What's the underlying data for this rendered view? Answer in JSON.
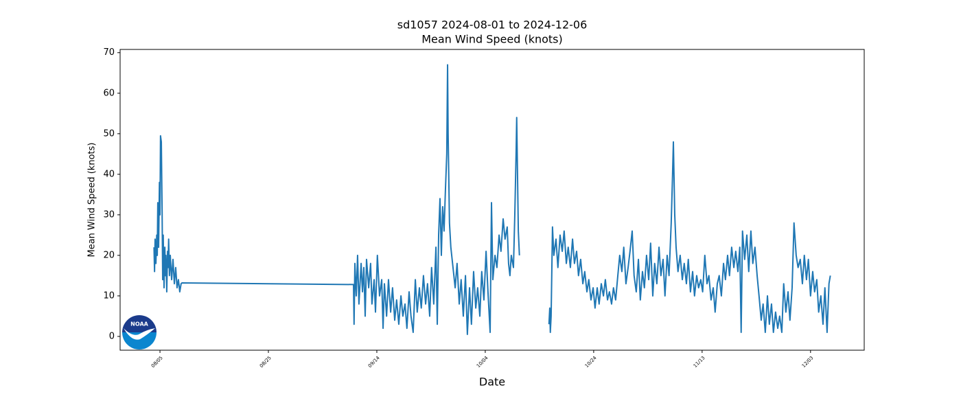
{
  "chart_data": {
    "type": "line",
    "title": "sd1057 2024-08-01 to 2024-12-06",
    "subtitle": "Mean Wind Speed (knots)",
    "x_label": "Date",
    "y_label": "Mean Wind Speed (knots)",
    "logo_text": "NOAA",
    "xlim": [
      -3.35,
      133.9
    ],
    "ylim": [
      -3.4,
      70.8
    ],
    "xticks": [
      {
        "value": 4,
        "label": "08/05"
      },
      {
        "value": 24,
        "label": "08/25"
      },
      {
        "value": 44,
        "label": "09/14"
      },
      {
        "value": 64,
        "label": "10/04"
      },
      {
        "value": 84,
        "label": "10/24"
      },
      {
        "value": 104,
        "label": "11/13"
      },
      {
        "value": 124,
        "label": "12/03"
      }
    ],
    "yticks": [
      0,
      10,
      20,
      30,
      40,
      50,
      60,
      70
    ],
    "series": [
      {
        "name": "Mean Wind Speed",
        "color": "#1f77b4",
        "x": [
          2.9,
          3.0,
          3.1,
          3.25,
          3.4,
          3.5,
          3.6,
          3.75,
          3.9,
          4.0,
          4.1,
          4.25,
          4.4,
          4.5,
          4.6,
          4.75,
          4.9,
          5.0,
          5.1,
          5.25,
          5.4,
          5.5,
          5.6,
          5.75,
          5.9,
          6.15,
          6.4,
          6.65,
          6.9,
          7.15,
          7.4,
          7.65,
          7.9,
          8.05,
          39.7,
          39.8,
          39.95,
          40.2,
          40.45,
          40.7,
          41.1,
          41.35,
          41.6,
          41.85,
          42.1,
          42.5,
          42.85,
          43.1,
          43.5,
          43.75,
          44.1,
          44.5,
          44.9,
          45.15,
          45.4,
          45.8,
          46.15,
          46.55,
          46.9,
          47.3,
          47.65,
          48.05,
          48.45,
          48.8,
          49.2,
          49.55,
          49.95,
          50.3,
          50.7,
          51.1,
          51.45,
          51.85,
          52.2,
          52.6,
          53.0,
          53.35,
          53.75,
          54.1,
          54.5,
          54.9,
          55.15,
          55.4,
          55.65,
          55.9,
          56.15,
          56.4,
          56.65,
          56.9,
          57.05,
          57.15,
          57.4,
          57.65,
          58.05,
          58.45,
          58.8,
          59.2,
          59.55,
          59.95,
          60.35,
          60.7,
          61.1,
          61.45,
          61.85,
          62.25,
          62.6,
          63.0,
          63.35,
          63.75,
          64.15,
          64.5,
          64.9,
          65.15,
          65.4,
          65.8,
          66.15,
          66.55,
          66.9,
          67.3,
          67.65,
          68.05,
          68.3,
          68.55,
          68.8,
          69.2,
          69.45,
          69.7,
          69.8,
          69.95,
          70.1,
          70.3,
          73.0,
          75.75,
          75.9,
          76.0,
          76.15,
          76.4,
          76.65,
          77.05,
          77.4,
          77.8,
          78.2,
          78.55,
          78.95,
          79.3,
          79.7,
          80.1,
          80.45,
          80.85,
          81.2,
          81.6,
          82.0,
          82.35,
          82.75,
          83.1,
          83.5,
          83.9,
          84.25,
          84.65,
          85.0,
          85.4,
          85.8,
          86.15,
          86.55,
          86.9,
          87.3,
          87.65,
          88.05,
          88.45,
          88.8,
          89.2,
          89.55,
          89.95,
          90.35,
          90.7,
          91.1,
          91.45,
          91.85,
          92.25,
          92.6,
          93.0,
          93.35,
          93.75,
          94.15,
          94.5,
          94.9,
          95.25,
          95.65,
          96.05,
          96.4,
          96.8,
          97.15,
          97.55,
          97.9,
          98.3,
          98.55,
          98.7,
          98.95,
          99.2,
          99.55,
          99.95,
          100.35,
          100.7,
          101.1,
          101.45,
          101.85,
          102.25,
          102.6,
          103.0,
          103.35,
          103.75,
          104.1,
          104.5,
          104.9,
          105.25,
          105.65,
          106.05,
          106.4,
          106.8,
          107.15,
          107.55,
          107.95,
          108.3,
          108.7,
          109.05,
          109.45,
          109.85,
          110.2,
          110.6,
          110.95,
          111.2,
          111.45,
          111.85,
          112.25,
          112.6,
          113.0,
          113.35,
          113.75,
          114.15,
          114.5,
          114.9,
          115.25,
          115.65,
          116.05,
          116.4,
          116.8,
          117.15,
          117.55,
          117.95,
          118.3,
          118.7,
          119.05,
          119.45,
          119.85,
          120.2,
          120.6,
          120.95,
          121.35,
          121.7,
          122.1,
          122.5,
          122.85,
          123.25,
          123.6,
          124.0,
          124.4,
          124.75,
          125.15,
          125.5,
          125.9,
          126.3,
          126.65,
          127.05,
          127.4,
          127.65
        ],
        "values": [
          22,
          16,
          24,
          18,
          25,
          20,
          33,
          22,
          38,
          30,
          49.5,
          48,
          30,
          14,
          25,
          12,
          22,
          15,
          20,
          11,
          21,
          17,
          24,
          15,
          20,
          14,
          19,
          13,
          17,
          12,
          14,
          11,
          13,
          13.2,
          12.8,
          3,
          18,
          10,
          20,
          8,
          18,
          11,
          17,
          5,
          19,
          12,
          18,
          8,
          14,
          6,
          20,
          10,
          14,
          2,
          13,
          5,
          14,
          6,
          12,
          4,
          9,
          3,
          10,
          5,
          8,
          2,
          11,
          5,
          1,
          14,
          6,
          12,
          7,
          15,
          8,
          13,
          5,
          17,
          8,
          22,
          3,
          25,
          34,
          20,
          32,
          26,
          36,
          45,
          67,
          50,
          28,
          22,
          17,
          12,
          18,
          8,
          14,
          5,
          15,
          0.5,
          12,
          3,
          16,
          7,
          12,
          5,
          16,
          9,
          21,
          11,
          1,
          33,
          14,
          20,
          17,
          25,
          21,
          29,
          24,
          27,
          18,
          15,
          20,
          17,
          30,
          46,
          54,
          40,
          26,
          20,
          null,
          3,
          7,
          1,
          5,
          27,
          20,
          24,
          17,
          25,
          21,
          26,
          18,
          22,
          17,
          24,
          18,
          21,
          15,
          19,
          13,
          16,
          11,
          14,
          9,
          12,
          7,
          12,
          8,
          13,
          10,
          14,
          9,
          11,
          8,
          12,
          9,
          15,
          20,
          16,
          22,
          13,
          17,
          21,
          26,
          15,
          11,
          19,
          9,
          16,
          12,
          20,
          14,
          23,
          10,
          18,
          13,
          22,
          15,
          19,
          10,
          20,
          15,
          28,
          40,
          48,
          30,
          22,
          16,
          20,
          14,
          18,
          13,
          19,
          11,
          16,
          10,
          15,
          12,
          14,
          11,
          20,
          13,
          15,
          9,
          12,
          6,
          13,
          15,
          10,
          18,
          14,
          20,
          15,
          22,
          17,
          21,
          16,
          22,
          1,
          26,
          19,
          25,
          16,
          26,
          18,
          22,
          15,
          10,
          4,
          8,
          1,
          10,
          3,
          8,
          1,
          6,
          2,
          5,
          1,
          13,
          6,
          11,
          4,
          12,
          28,
          20,
          17,
          19,
          13,
          20,
          14,
          19,
          10,
          16,
          11,
          14,
          6,
          10,
          3,
          12,
          1,
          13,
          15
        ]
      }
    ]
  }
}
